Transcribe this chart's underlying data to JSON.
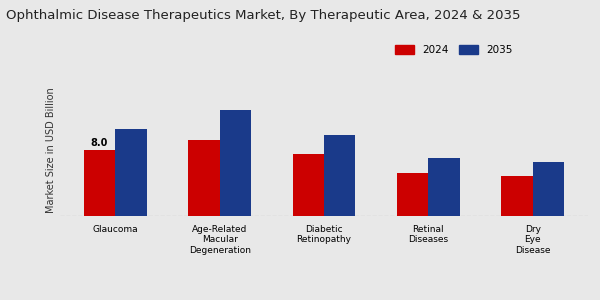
{
  "title": "Ophthalmic Disease Therapeutics Market, By Therapeutic Area, 2024 & 2035",
  "ylabel": "Market Size in USD Billion",
  "categories": [
    "Glaucoma",
    "Age-Related\nMacular\nDegeneration",
    "Diabetic\nRetinopathy",
    "Retinal\nDiseases",
    "Dry\nEye\nDisease"
  ],
  "values_2024": [
    8.0,
    9.2,
    7.5,
    5.2,
    4.8
  ],
  "values_2035": [
    10.5,
    12.8,
    9.8,
    7.0,
    6.5
  ],
  "bar_color_2024": "#cc0000",
  "bar_color_2035": "#1a3a8a",
  "annotation_label": "8.0",
  "background_color": "#e8e8e8",
  "title_fontsize": 9.5,
  "legend_labels": [
    "2024",
    "2035"
  ],
  "bar_width": 0.3,
  "ylim": [
    0,
    16
  ]
}
